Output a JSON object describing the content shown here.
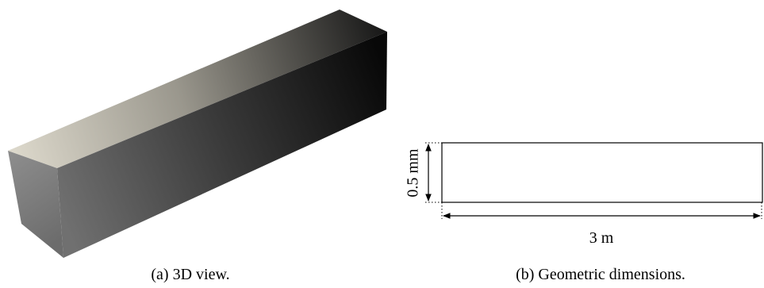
{
  "figure": {
    "subfigures": [
      {
        "caption": "(a) 3D view."
      },
      {
        "caption": "(b) Geometric dimensions.",
        "height_label": "0.5 mm",
        "length_label": "3 m"
      }
    ]
  }
}
